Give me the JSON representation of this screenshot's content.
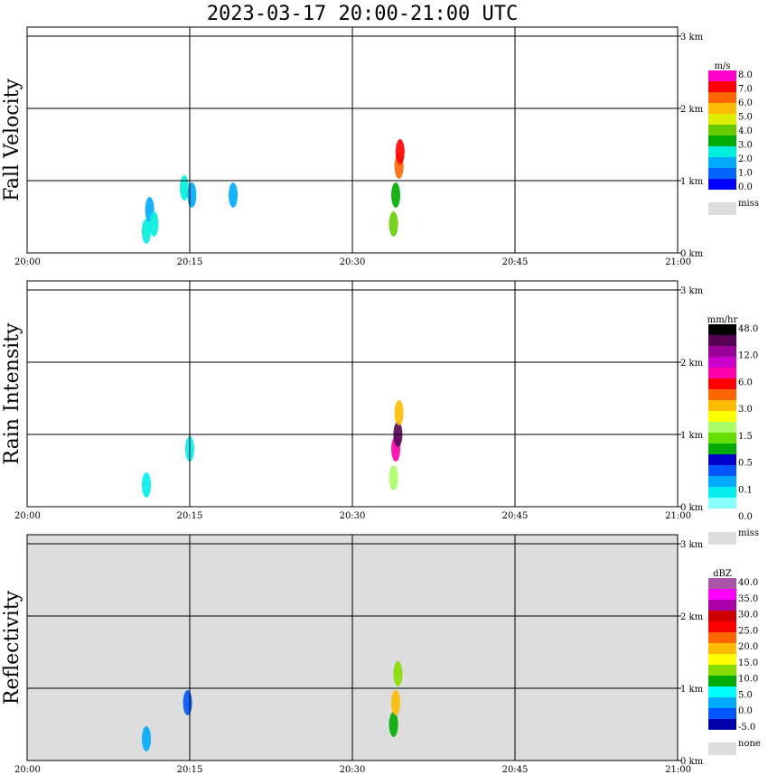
{
  "title": "2023-03-17   20:00-21:00 UTC",
  "x_ticks": [
    "20:00",
    "20:15",
    "20:30",
    "20:45",
    "21:00"
  ],
  "y_ticks": [
    "0 km",
    "1 km",
    "2 km",
    "3 km"
  ],
  "chart_data": [
    {
      "type": "heatmap",
      "title": "",
      "ylabel": "Fall Velocity",
      "xlabel": "",
      "xlim_minutes": [
        0,
        60
      ],
      "ylim_km": [
        0,
        3.0
      ],
      "background": "#ffffff",
      "colorbar": {
        "unit": "m/s",
        "colors": [
          "#0000ff",
          "#0066ff",
          "#00aaff",
          "#00eedd",
          "#00aa00",
          "#66cc00",
          "#ddee00",
          "#ffbb00",
          "#ff6600",
          "#ff0000",
          "#ff00cc"
        ],
        "labels": [
          "0.0",
          "1.0",
          "2.0",
          "3.0",
          "4.0",
          "5.0",
          "6.0",
          "7.0",
          "8.0"
        ],
        "miss": "miss",
        "miss_color": "#dddddd"
      },
      "echoes": [
        {
          "t": 11.0,
          "z": 0.3,
          "v": 2
        },
        {
          "t": 11.3,
          "z": 0.6,
          "v": 1
        },
        {
          "t": 11.7,
          "z": 0.4,
          "v": 2
        },
        {
          "t": 14.5,
          "z": 0.9,
          "v": 2
        },
        {
          "t": 15.2,
          "z": 0.8,
          "v": 1
        },
        {
          "t": 19.0,
          "z": 0.8,
          "v": 1
        },
        {
          "t": 33.8,
          "z": 0.4,
          "v": 4
        },
        {
          "t": 34.0,
          "z": 0.8,
          "v": 3
        },
        {
          "t": 34.3,
          "z": 1.2,
          "v": 7
        },
        {
          "t": 34.4,
          "z": 1.4,
          "v": 8
        }
      ]
    },
    {
      "type": "heatmap",
      "title": "",
      "ylabel": "Rain Intensity",
      "xlabel": "",
      "xlim_minutes": [
        0,
        60
      ],
      "ylim_km": [
        0,
        3.0
      ],
      "background": "#ffffff",
      "colorbar": {
        "unit": "mm/hr",
        "colors": [
          "#ffffff",
          "#88ffff",
          "#00eeee",
          "#00aaff",
          "#0055ff",
          "#0000cc",
          "#00aa00",
          "#66dd00",
          "#aaff66",
          "#ffff00",
          "#ffbb00",
          "#ff6600",
          "#ff0000",
          "#ff00aa",
          "#cc00cc",
          "#990099",
          "#550055",
          "#000000"
        ],
        "labels": [
          "0.0",
          "0.1",
          "0.5",
          "1.5",
          "3.0",
          "6.0",
          "12.0",
          "48.0"
        ],
        "miss": "miss",
        "miss_color": "#dddddd"
      },
      "echoes": [
        {
          "t": 11.0,
          "z": 0.3,
          "r": 0.1
        },
        {
          "t": 15.0,
          "z": 0.8,
          "r": 0.1
        },
        {
          "t": 33.8,
          "z": 0.4,
          "r": 1.5
        },
        {
          "t": 34.0,
          "z": 0.8,
          "r": 12.0
        },
        {
          "t": 34.2,
          "z": 1.0,
          "r": 48.0
        },
        {
          "t": 34.3,
          "z": 1.3,
          "r": 3.0
        }
      ]
    },
    {
      "type": "heatmap",
      "title": "",
      "ylabel": "Reflectivity",
      "xlabel": "",
      "xlim_minutes": [
        0,
        60
      ],
      "ylim_km": [
        0,
        3.0
      ],
      "background": "#dddddd",
      "colorbar": {
        "unit": "dBZ",
        "colors": [
          "#0000aa",
          "#0055ff",
          "#00aaff",
          "#00ffff",
          "#00aa00",
          "#88dd00",
          "#ffff00",
          "#ffbb00",
          "#ff6600",
          "#ff0000",
          "#cc0000",
          "#aa00aa",
          "#ff00ff",
          "#aa55aa"
        ],
        "labels": [
          "-5.0",
          "0.0",
          "5.0",
          "10.0",
          "15.0",
          "20.0",
          "25.0",
          "30.0",
          "35.0",
          "40.0"
        ],
        "miss": "none",
        "miss_color": "#dddddd"
      },
      "echoes": [
        {
          "t": 11.0,
          "z": 0.3,
          "dbz": 5
        },
        {
          "t": 14.8,
          "z": 0.8,
          "dbz": 0
        },
        {
          "t": 33.8,
          "z": 0.5,
          "dbz": 15
        },
        {
          "t": 34.0,
          "z": 0.8,
          "dbz": 30
        },
        {
          "t": 34.2,
          "z": 1.2,
          "dbz": 20
        }
      ]
    }
  ]
}
